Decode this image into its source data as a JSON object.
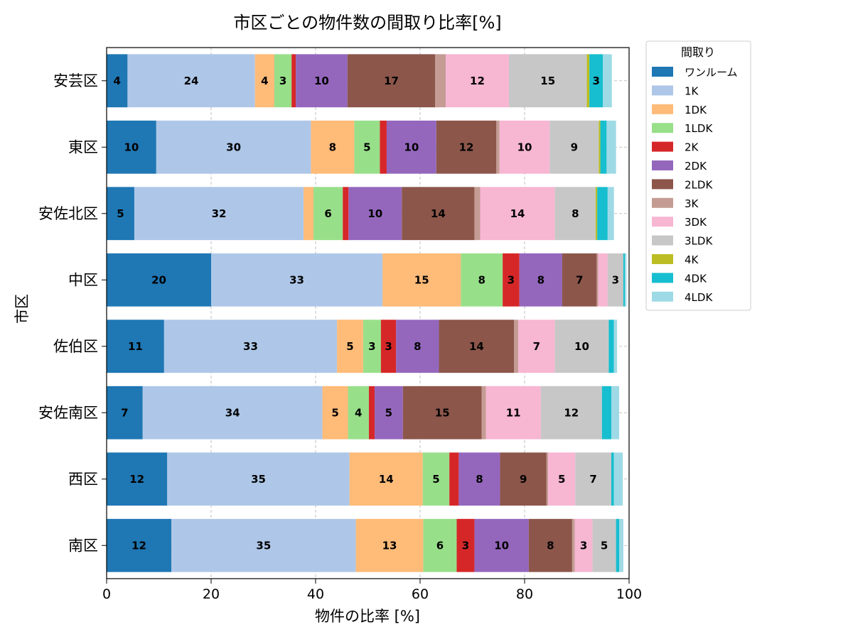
{
  "chart_data": {
    "type": "bar",
    "orientation": "horizontal",
    "stacked": true,
    "title": "市区ごとの物件数の間取り比率[%]",
    "xlabel": "物件の比率 [%]",
    "ylabel": "市区",
    "xlim": [
      0,
      100
    ],
    "xticks": [
      "0",
      "20",
      "40",
      "60",
      "80",
      "100"
    ],
    "grid": true,
    "legend_title": "間取り",
    "legend_position": "outside-top-right",
    "categories": [
      "安芸区",
      "東区",
      "安佐北区",
      "中区",
      "佐伯区",
      "安佐南区",
      "西区",
      "南区"
    ],
    "series": [
      {
        "name": "ワンルーム",
        "color": "#1f77b4",
        "values": [
          4.0,
          9.5,
          5.3,
          20.0,
          11.0,
          6.9,
          11.6,
          12.4
        ]
      },
      {
        "name": "1K",
        "color": "#aec7e8",
        "values": [
          24.4,
          29.6,
          32.4,
          32.8,
          33.1,
          34.4,
          34.9,
          35.3
        ]
      },
      {
        "name": "1DK",
        "color": "#ffbb78",
        "values": [
          3.7,
          8.3,
          1.9,
          15.0,
          5.0,
          4.9,
          14.0,
          12.9
        ]
      },
      {
        "name": "1LDK",
        "color": "#98df8a",
        "values": [
          3.3,
          4.9,
          5.6,
          8.0,
          3.4,
          4.0,
          5.1,
          6.4
        ]
      },
      {
        "name": "2K",
        "color": "#d62728",
        "values": [
          0.8,
          1.3,
          1.1,
          3.2,
          2.9,
          1.1,
          1.8,
          3.4
        ]
      },
      {
        "name": "2DK",
        "color": "#9467bd",
        "values": [
          9.9,
          9.5,
          10.2,
          8.2,
          8.2,
          5.4,
          7.9,
          10.4
        ]
      },
      {
        "name": "2LDK",
        "color": "#8c564b",
        "values": [
          16.8,
          11.5,
          13.9,
          6.6,
          14.4,
          15.1,
          8.9,
          8.3
        ]
      },
      {
        "name": "3K",
        "color": "#c49c94",
        "values": [
          2.0,
          0.6,
          1.1,
          0.3,
          0.8,
          0.8,
          0.3,
          0.5
        ]
      },
      {
        "name": "3DK",
        "color": "#f7b6d2",
        "values": [
          12.1,
          9.6,
          14.3,
          1.8,
          7.0,
          10.5,
          5.2,
          3.4
        ]
      },
      {
        "name": "3LDK",
        "color": "#c7c7c7",
        "values": [
          14.9,
          9.4,
          7.8,
          3.0,
          10.3,
          11.7,
          6.9,
          4.5
        ]
      },
      {
        "name": "4K",
        "color": "#bcbd22",
        "values": [
          0.5,
          0.3,
          0.3,
          0.0,
          0.0,
          0.0,
          0.0,
          0.0
        ]
      },
      {
        "name": "4DK",
        "color": "#17becf",
        "values": [
          2.6,
          1.2,
          2.0,
          0.3,
          1.0,
          1.8,
          0.5,
          0.6
        ]
      },
      {
        "name": "4LDK",
        "color": "#9edae5",
        "values": [
          1.7,
          1.8,
          1.2,
          0.3,
          0.6,
          1.5,
          1.7,
          0.8
        ]
      }
    ]
  }
}
